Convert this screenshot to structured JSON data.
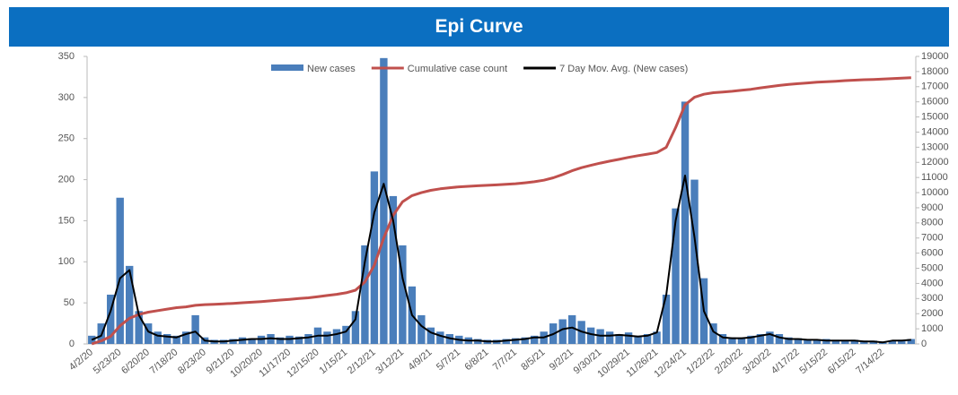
{
  "chart_data": {
    "type": "bar_line",
    "title": "Epi Curve",
    "categories": [
      "4/2/20",
      null,
      null,
      "5/23/20",
      null,
      null,
      "6/20/20",
      null,
      null,
      "7/18/20",
      null,
      null,
      "8/23/20",
      null,
      null,
      "9/21/20",
      null,
      null,
      "10/20/20",
      null,
      null,
      "11/17/20",
      null,
      null,
      "12/15/20",
      null,
      null,
      "1/15/21",
      null,
      null,
      "2/12/21",
      null,
      null,
      "3/12/21",
      null,
      null,
      "4/9/21",
      null,
      null,
      "5/7/21",
      null,
      null,
      "6/8/21",
      null,
      null,
      "7/7/21",
      null,
      null,
      "8/5/21",
      null,
      null,
      "9/2/21",
      null,
      null,
      "9/30/21",
      null,
      null,
      "10/29/21",
      null,
      null,
      "11/26/21",
      null,
      null,
      "12/24/21",
      null,
      null,
      "1/22/22",
      null,
      null,
      "2/20/22",
      null,
      null,
      "3/20/22",
      null,
      null,
      "4/17/22",
      null,
      null,
      "5/15/22",
      null,
      null,
      "6/15/22",
      null,
      null,
      "7/14/22",
      null,
      null,
      null
    ],
    "series": [
      {
        "name": "New cases",
        "color": "#4a7ebb",
        "kind": "bar",
        "values": [
          10,
          25,
          60,
          178,
          95,
          40,
          25,
          15,
          12,
          10,
          15,
          35,
          8,
          5,
          5,
          6,
          8,
          7,
          10,
          12,
          8,
          10,
          9,
          12,
          20,
          15,
          18,
          22,
          40,
          120,
          210,
          348,
          180,
          120,
          70,
          35,
          20,
          15,
          12,
          10,
          8,
          6,
          5,
          5,
          6,
          7,
          8,
          10,
          15,
          25,
          30,
          35,
          28,
          20,
          18,
          15,
          12,
          14,
          10,
          12,
          15,
          60,
          165,
          295,
          200,
          80,
          25,
          12,
          8,
          7,
          10,
          12,
          15,
          12,
          8,
          7,
          6,
          5,
          6,
          5,
          4,
          5,
          4,
          4,
          3,
          4,
          5,
          6
        ]
      },
      {
        "name": "Cumulative case count",
        "color": "#c0504d",
        "kind": "line",
        "axis": "y2",
        "values": [
          0,
          200,
          500,
          1200,
          1700,
          1950,
          2100,
          2200,
          2300,
          2400,
          2450,
          2550,
          2600,
          2620,
          2650,
          2680,
          2720,
          2760,
          2800,
          2850,
          2900,
          2950,
          3000,
          3050,
          3120,
          3200,
          3280,
          3380,
          3550,
          4100,
          5200,
          7000,
          8500,
          9400,
          9800,
          10000,
          10150,
          10250,
          10320,
          10380,
          10420,
          10450,
          10480,
          10510,
          10550,
          10590,
          10650,
          10720,
          10820,
          10980,
          11200,
          11450,
          11650,
          11800,
          11950,
          12080,
          12200,
          12330,
          12440,
          12540,
          12650,
          13000,
          14300,
          15800,
          16300,
          16500,
          16600,
          16650,
          16700,
          16760,
          16830,
          16920,
          17000,
          17080,
          17150,
          17200,
          17250,
          17300,
          17330,
          17360,
          17400,
          17430,
          17460,
          17480,
          17500,
          17530,
          17560,
          17600
        ]
      },
      {
        "name": "7 Day Mov. Avg. (New cases)",
        "color": "#000000",
        "kind": "line",
        "values": [
          5,
          10,
          40,
          80,
          90,
          35,
          15,
          10,
          9,
          8,
          12,
          15,
          4,
          3,
          3,
          4,
          5,
          6,
          6,
          7,
          6,
          6,
          7,
          8,
          10,
          10,
          12,
          15,
          30,
          100,
          160,
          195,
          150,
          80,
          35,
          22,
          14,
          10,
          7,
          5,
          4,
          4,
          3,
          3,
          4,
          5,
          6,
          8,
          8,
          12,
          18,
          20,
          15,
          12,
          10,
          10,
          11,
          10,
          9,
          10,
          14,
          60,
          150,
          205,
          130,
          40,
          15,
          8,
          7,
          7,
          8,
          10,
          12,
          8,
          6,
          6,
          5,
          5,
          4,
          4,
          4,
          4,
          3,
          3,
          2,
          4,
          4,
          5
        ]
      }
    ],
    "ylim": [
      0,
      350
    ],
    "yticks": [
      0,
      50,
      100,
      150,
      200,
      250,
      300,
      350
    ],
    "y2lim": [
      0,
      19000
    ],
    "y2ticks": [
      0,
      1000,
      2000,
      3000,
      4000,
      5000,
      6000,
      7000,
      8000,
      9000,
      10000,
      11000,
      12000,
      13000,
      14000,
      15000,
      16000,
      17000,
      18000,
      19000
    ]
  }
}
